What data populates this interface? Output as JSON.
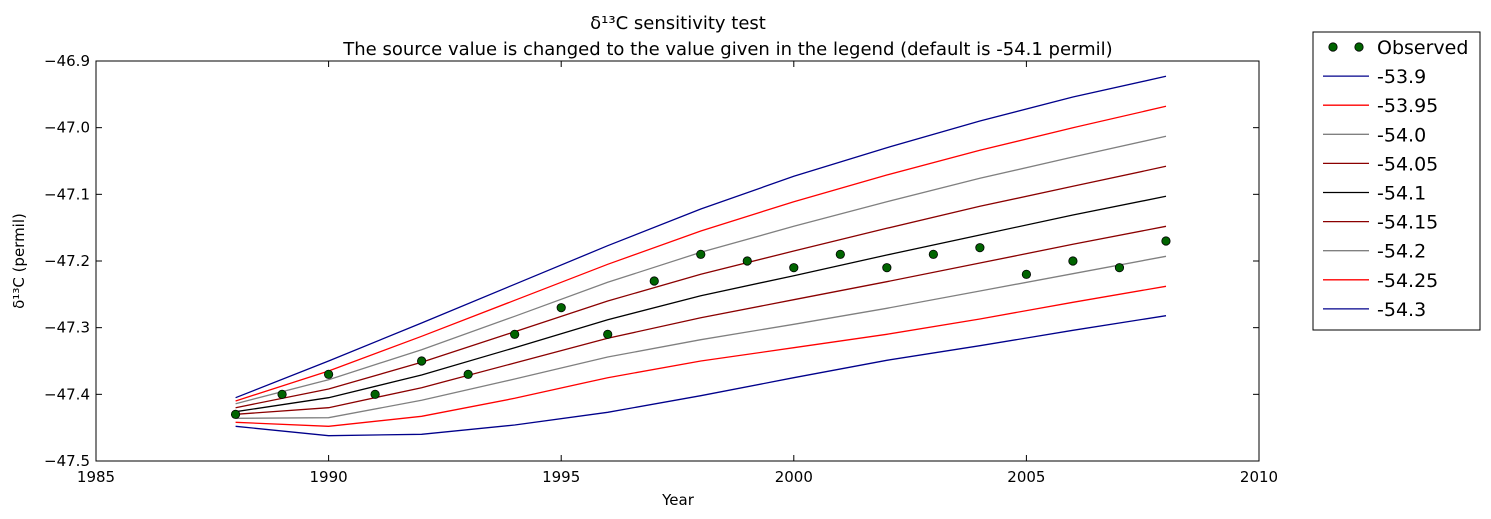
{
  "chart_data": {
    "type": "line",
    "title_line1": "δ¹³C sensitivity test",
    "title_line2": "The source value is changed to the value given in the legend (default is -54.1 permil)",
    "xlabel": "Year",
    "ylabel": "δ¹³C (permil)",
    "xlim": [
      1985,
      2010
    ],
    "ylim": [
      -47.5,
      -46.9
    ],
    "xticks": [
      1985,
      1990,
      1995,
      2000,
      2005,
      2010
    ],
    "yticks": [
      -47.5,
      -47.4,
      -47.3,
      -47.2,
      -47.1,
      -47.0,
      -46.9
    ],
    "xtick_labels": [
      "1985",
      "1990",
      "1995",
      "2000",
      "2005",
      "2010"
    ],
    "ytick_labels": [
      "−47.5",
      "−47.4",
      "−47.3",
      "−47.2",
      "−47.1",
      "−47.0",
      "−46.9"
    ],
    "legend_position": "outside-top-right",
    "x": [
      1988,
      1990,
      1992,
      1994,
      1996,
      1998,
      2000,
      2002,
      2004,
      2006,
      2008
    ],
    "observed": {
      "name": "Observed",
      "color": "#006400",
      "x": [
        1988,
        1989,
        1990,
        1991,
        1992,
        1993,
        1994,
        1995,
        1996,
        1997,
        1998,
        1999,
        2000,
        2001,
        2002,
        2003,
        2004,
        2005,
        2006,
        2007,
        2008
      ],
      "y": [
        -47.43,
        -47.4,
        -47.37,
        -47.4,
        -47.35,
        -47.37,
        -47.31,
        -47.27,
        -47.31,
        -47.23,
        -47.19,
        -47.2,
        -47.21,
        -47.19,
        -47.21,
        -47.19,
        -47.18,
        -47.22,
        -47.2,
        -47.21,
        -47.17
      ]
    },
    "series": [
      {
        "name": "-53.9",
        "color": "#00008b",
        "values": [
          -47.405,
          -47.35,
          -47.293,
          -47.235,
          -47.177,
          -47.122,
          -47.073,
          -47.03,
          -46.99,
          -46.954,
          -46.923
        ]
      },
      {
        "name": "-53.95",
        "color": "#ff0000",
        "values": [
          -47.41,
          -47.365,
          -47.313,
          -47.259,
          -47.205,
          -47.155,
          -47.111,
          -47.071,
          -47.034,
          -47.0,
          -46.968
        ]
      },
      {
        "name": "-54.0",
        "color": "#808080",
        "values": [
          -47.414,
          -47.378,
          -47.333,
          -47.283,
          -47.232,
          -47.187,
          -47.148,
          -47.111,
          -47.076,
          -47.044,
          -47.013
        ]
      },
      {
        "name": "-54.05",
        "color": "#8b0000",
        "values": [
          -47.42,
          -47.392,
          -47.352,
          -47.306,
          -47.26,
          -47.22,
          -47.185,
          -47.151,
          -47.118,
          -47.088,
          -47.058
        ]
      },
      {
        "name": "-54.1",
        "color": "#000000",
        "values": [
          -47.426,
          -47.405,
          -47.371,
          -47.33,
          -47.288,
          -47.252,
          -47.222,
          -47.191,
          -47.161,
          -47.131,
          -47.103
        ]
      },
      {
        "name": "-54.15",
        "color": "#8b0000",
        "values": [
          -47.43,
          -47.42,
          -47.39,
          -47.353,
          -47.316,
          -47.285,
          -47.258,
          -47.231,
          -47.203,
          -47.175,
          -47.148
        ]
      },
      {
        "name": "-54.2",
        "color": "#808080",
        "values": [
          -47.436,
          -47.435,
          -47.409,
          -47.377,
          -47.344,
          -47.318,
          -47.295,
          -47.271,
          -47.245,
          -47.219,
          -47.193
        ]
      },
      {
        "name": "-54.25",
        "color": "#ff0000",
        "values": [
          -47.442,
          -47.448,
          -47.433,
          -47.406,
          -47.375,
          -47.35,
          -47.33,
          -47.31,
          -47.287,
          -47.262,
          -47.238
        ]
      },
      {
        "name": "-54.3",
        "color": "#00008b",
        "values": [
          -47.448,
          -47.462,
          -47.46,
          -47.446,
          -47.427,
          -47.402,
          -47.375,
          -47.349,
          -47.327,
          -47.304,
          -47.282
        ]
      }
    ]
  }
}
